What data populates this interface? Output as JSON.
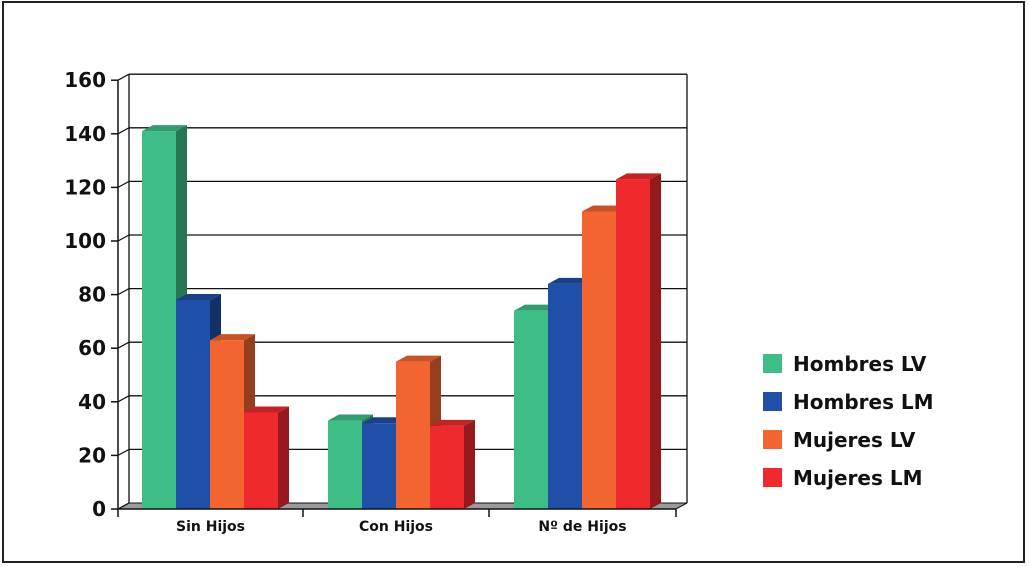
{
  "chart_data": {
    "type": "bar",
    "title": "",
    "xlabel": "",
    "ylabel": "",
    "categories": [
      "Sin Hijos",
      "Con Hijos",
      "Nº de Hijos"
    ],
    "ylim": [
      0,
      160
    ],
    "yticks": [
      0,
      20,
      40,
      60,
      80,
      100,
      120,
      140,
      160
    ],
    "grid": true,
    "legend_position": "right",
    "series": [
      {
        "name": "Hombres LV",
        "values": [
          141,
          33,
          74
        ],
        "color": "#3ebd87"
      },
      {
        "name": "Hombres LM",
        "values": [
          78,
          32,
          84
        ],
        "color": "#1f4fa6"
      },
      {
        "name": "Mujeres LV",
        "values": [
          63,
          55,
          111
        ],
        "color": "#f26530"
      },
      {
        "name": "Mujeres LM",
        "values": [
          36,
          31,
          123
        ],
        "color": "#ee2a2e"
      }
    ]
  }
}
